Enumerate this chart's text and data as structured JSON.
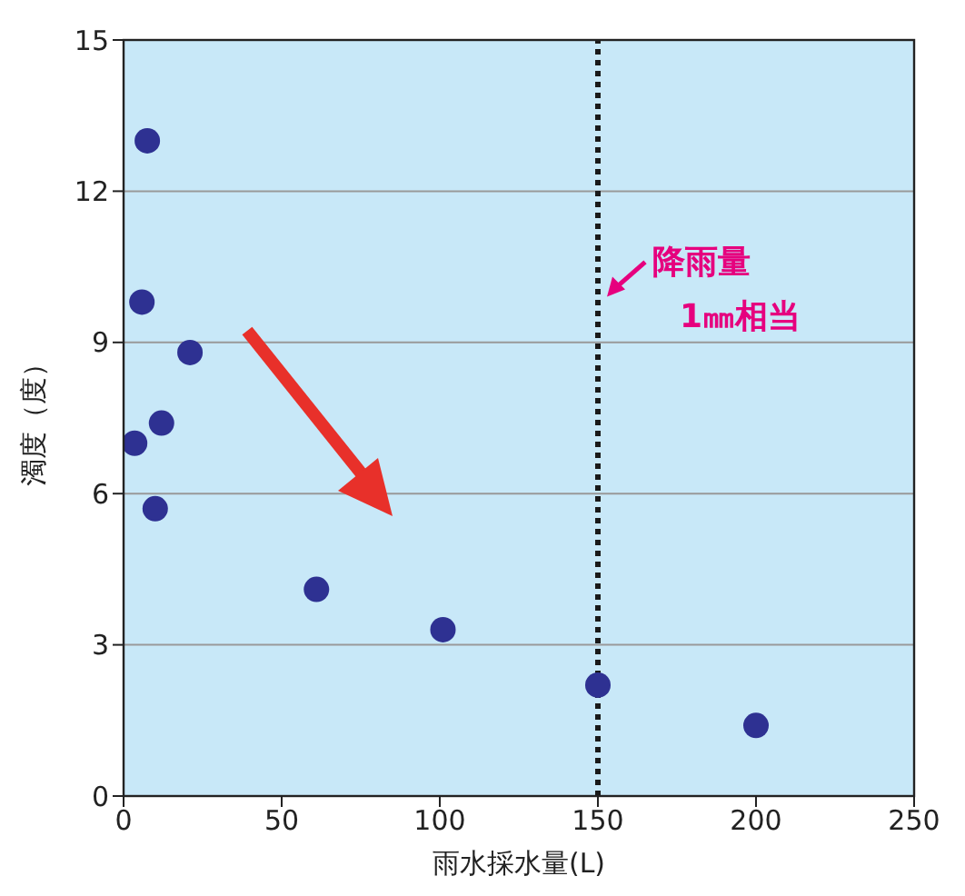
{
  "chart_data": {
    "type": "scatter",
    "xlabel": "雨水採水量(L)",
    "ylabel": "濁度（度）",
    "x": [
      7.5,
      5.8,
      21,
      12,
      3.5,
      10,
      61,
      101,
      150,
      200
    ],
    "series": [
      {
        "color": "#2e3192",
        "values": [
          13.0,
          9.8,
          8.8,
          7.4,
          7.0,
          5.7,
          4.1,
          3.3,
          2.2,
          1.4
        ]
      }
    ],
    "xlim": [
      0,
      250
    ],
    "xticks": [
      0,
      50,
      100,
      150,
      200,
      250
    ],
    "ylim": [
      0,
      15
    ],
    "yticks": [
      0,
      3,
      6,
      9,
      12,
      15
    ],
    "grid": "y",
    "marker": "circle",
    "ref_lines": [
      {
        "axis": "x",
        "value": 150,
        "color": "#1a1a1a",
        "line_style": "dotted"
      }
    ],
    "annotations": [
      {
        "text": "降雨量\n1㎜相当",
        "x": 150,
        "y": 9.8
      }
    ]
  }
}
